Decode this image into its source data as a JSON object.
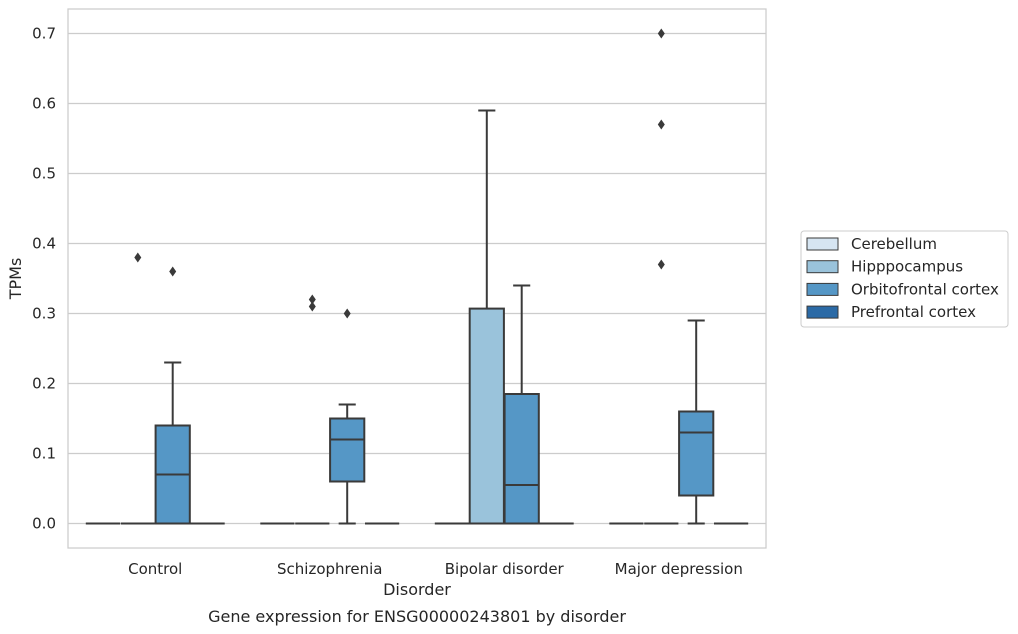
{
  "chart_data": {
    "type": "boxplot",
    "title": "Gene expression for ENSG00000243801 by disorder",
    "xlabel": "Disorder",
    "ylabel": "TPMs",
    "ylim": [
      -0.035,
      0.735
    ],
    "yticks": [
      0.0,
      0.1,
      0.2,
      0.3,
      0.4,
      0.5,
      0.6,
      0.7
    ],
    "ytick_labels": [
      "0.0",
      "0.1",
      "0.2",
      "0.3",
      "0.4",
      "0.5",
      "0.6",
      "0.7"
    ],
    "grid": true,
    "legend_position": "right",
    "categories": [
      "Control",
      "Schizophrenia",
      "Bipolar disorder",
      "Major depression"
    ],
    "series": [
      {
        "name": "Cerebellum",
        "color": "#d6e5f2",
        "boxes": [
          {
            "q1": 0,
            "median": 0,
            "q3": 0,
            "whisker_low": 0,
            "whisker_high": 0,
            "outliers": []
          },
          {
            "q1": 0,
            "median": 0,
            "q3": 0,
            "whisker_low": 0,
            "whisker_high": 0,
            "outliers": []
          },
          {
            "q1": 0,
            "median": 0,
            "q3": 0,
            "whisker_low": 0,
            "whisker_high": 0,
            "outliers": []
          },
          {
            "q1": 0,
            "median": 0,
            "q3": 0,
            "whisker_low": 0,
            "whisker_high": 0,
            "outliers": []
          }
        ]
      },
      {
        "name": "Hipppocampus",
        "color": "#9ac3db",
        "boxes": [
          {
            "q1": 0,
            "median": 0,
            "q3": 0,
            "whisker_low": 0,
            "whisker_high": 0,
            "outliers": [
              0.38
            ]
          },
          {
            "q1": 0,
            "median": 0,
            "q3": 0,
            "whisker_low": 0,
            "whisker_high": 0,
            "outliers": [
              0.32,
              0.31
            ]
          },
          {
            "q1": 0,
            "median": 0,
            "q3": 0.307,
            "whisker_low": 0,
            "whisker_high": 0.59,
            "outliers": []
          },
          {
            "q1": 0,
            "median": 0,
            "q3": 0,
            "whisker_low": 0,
            "whisker_high": 0,
            "outliers": [
              0.7,
              0.57,
              0.37
            ]
          }
        ]
      },
      {
        "name": "Orbitofrontal cortex",
        "color": "#5597c6",
        "boxes": [
          {
            "q1": 0,
            "median": 0.07,
            "q3": 0.14,
            "whisker_low": 0,
            "whisker_high": 0.23,
            "outliers": [
              0.36
            ]
          },
          {
            "q1": 0.06,
            "median": 0.12,
            "q3": 0.15,
            "whisker_low": 0,
            "whisker_high": 0.17,
            "outliers": [
              0.3
            ]
          },
          {
            "q1": 0,
            "median": 0.055,
            "q3": 0.185,
            "whisker_low": 0,
            "whisker_high": 0.34,
            "outliers": []
          },
          {
            "q1": 0.04,
            "median": 0.13,
            "q3": 0.16,
            "whisker_low": 0,
            "whisker_high": 0.29,
            "outliers": []
          }
        ]
      },
      {
        "name": "Prefrontal cortex",
        "color": "#2b6aa6",
        "boxes": [
          {
            "q1": 0,
            "median": 0,
            "q3": 0,
            "whisker_low": 0,
            "whisker_high": 0,
            "outliers": []
          },
          {
            "q1": 0,
            "median": 0,
            "q3": 0,
            "whisker_low": 0,
            "whisker_high": 0,
            "outliers": []
          },
          {
            "q1": 0,
            "median": 0,
            "q3": 0,
            "whisker_low": 0,
            "whisker_high": 0,
            "outliers": []
          },
          {
            "q1": 0,
            "median": 0,
            "q3": 0,
            "whisker_low": 0,
            "whisker_high": 0,
            "outliers": []
          }
        ]
      }
    ]
  }
}
